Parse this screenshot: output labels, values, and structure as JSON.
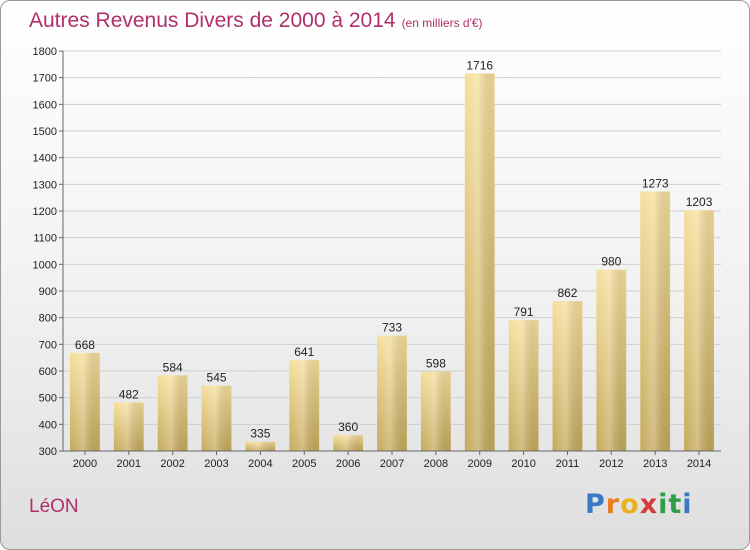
{
  "header": {
    "title": "Autres Revenus Divers de 2000 à 2014",
    "subtitle": "(en milliers d'€)"
  },
  "footer": {
    "city": "LéON",
    "logo": [
      "P",
      "r",
      "o",
      "x",
      "i",
      "t",
      "i"
    ]
  },
  "colors": {
    "title": "#b0306a",
    "bar_top": "#f6df9c",
    "bar_bottom": "#c4a95b",
    "logo": [
      "#3a78c6",
      "#e87d1e",
      "#e8b31e",
      "#d83a3a",
      "#2f9e44",
      "#2f9e44",
      "#3a78c6"
    ]
  },
  "chart_data": {
    "type": "bar",
    "title": "Autres Revenus Divers de 2000 à 2014",
    "subtitle": "(en milliers d'€)",
    "categories": [
      "2000",
      "2001",
      "2002",
      "2003",
      "2004",
      "2005",
      "2006",
      "2007",
      "2008",
      "2009",
      "2010",
      "2011",
      "2012",
      "2013",
      "2014"
    ],
    "values": [
      668,
      482,
      584,
      545,
      335,
      641,
      360,
      733,
      598,
      1716,
      791,
      862,
      980,
      1273,
      1203
    ],
    "data_labels": [
      "668",
      "482",
      "584",
      "545",
      "335",
      "641",
      "360",
      "733",
      "598",
      "1716",
      "791",
      "862",
      "980",
      "1273",
      "1203"
    ],
    "yticks": [
      "300",
      "400",
      "500",
      "600",
      "700",
      "800",
      "900",
      "1000",
      "1100",
      "1200",
      "1300",
      "1400",
      "1500",
      "1600",
      "1700",
      "1800"
    ],
    "ylim": [
      300,
      1800
    ],
    "grid": true,
    "xlabel": "",
    "ylabel": ""
  }
}
